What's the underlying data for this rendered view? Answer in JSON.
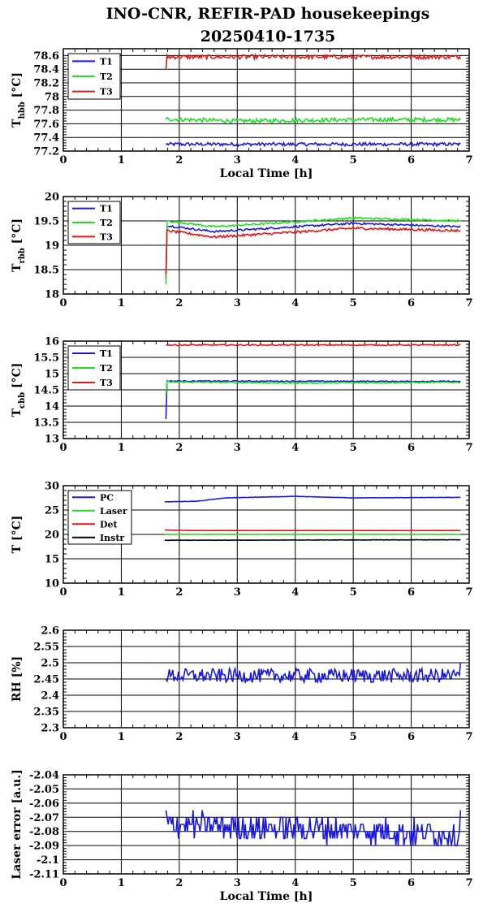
{
  "title_line1": "INO-CNR, REFIR-PAD housekeepings",
  "title_line2": "20250410-1735",
  "xlabel": "Local Time [h]",
  "colors": {
    "blue": "#1a1adc",
    "green": "#22dd22",
    "red": "#dd1a1a",
    "black": "#000000"
  },
  "chart_data": [
    {
      "type": "line",
      "ylabel_main": "T",
      "ylabel_sub": "hbb",
      "ylabel_unit": " [°C]",
      "xlim": [
        0,
        7
      ],
      "ylim": [
        77.2,
        78.7
      ],
      "xticks": [
        0,
        1,
        2,
        3,
        4,
        5,
        6,
        7
      ],
      "yticks": [
        77.2,
        77.4,
        77.6,
        77.8,
        78,
        78.2,
        78.4,
        78.6
      ],
      "ytick_labels": [
        "77.2",
        "77.4",
        "77.6",
        "77.8",
        "78",
        "78.2",
        "78.4",
        "78.6"
      ],
      "grid": true,
      "legend": "top-left",
      "show_xlabel": true,
      "x_start": 1.77,
      "x_end": 6.85,
      "series": [
        {
          "name": "T1",
          "color": "#1a1adc",
          "start": 77.3,
          "mean": 77.3,
          "noise": 0.025,
          "end": 77.3,
          "drift": [
            [
              1.77,
              77.3
            ],
            [
              6.85,
              77.3
            ]
          ]
        },
        {
          "name": "T2",
          "color": "#22dd22",
          "start": 77.66,
          "mean": 77.66,
          "noise": 0.03,
          "end": 77.66,
          "drift": [
            [
              1.77,
              77.67
            ],
            [
              3,
              77.64
            ],
            [
              5,
              77.66
            ],
            [
              6.85,
              77.66
            ]
          ]
        },
        {
          "name": "T3",
          "color": "#dd1a1a",
          "start": 78.4,
          "mean": 78.58,
          "noise": 0.03,
          "end": 78.55,
          "drift": [
            [
              1.8,
              78.58
            ],
            [
              6.85,
              78.58
            ]
          ]
        }
      ]
    },
    {
      "type": "line",
      "ylabel_main": "T",
      "ylabel_sub": "rbb",
      "ylabel_unit": " [°C]",
      "xlim": [
        0,
        7
      ],
      "ylim": [
        18,
        20
      ],
      "xticks": [
        0,
        1,
        2,
        3,
        4,
        5,
        6,
        7
      ],
      "yticks": [
        18,
        18.5,
        19,
        19.5,
        20
      ],
      "ytick_labels": [
        "18",
        "18.5",
        "19",
        "19.5",
        "20"
      ],
      "grid": true,
      "legend": "top-left",
      "show_xlabel": false,
      "x_start": 1.77,
      "x_end": 6.85,
      "series": [
        {
          "name": "T1",
          "color": "#1a1adc",
          "start": 18.3,
          "mean": 19.38,
          "noise": 0.02,
          "end": 19.38,
          "drift": [
            [
              1.8,
              19.4
            ],
            [
              2.6,
              19.28
            ],
            [
              4,
              19.38
            ],
            [
              5,
              19.45
            ],
            [
              6.85,
              19.38
            ]
          ]
        },
        {
          "name": "T2",
          "color": "#22dd22",
          "start": 18.2,
          "mean": 19.5,
          "noise": 0.02,
          "end": 19.5,
          "drift": [
            [
              1.8,
              19.5
            ],
            [
              2.6,
              19.38
            ],
            [
              4,
              19.48
            ],
            [
              5,
              19.56
            ],
            [
              6.85,
              19.5
            ]
          ]
        },
        {
          "name": "T3",
          "color": "#dd1a1a",
          "start": 18.4,
          "mean": 19.28,
          "noise": 0.025,
          "end": 19.3,
          "drift": [
            [
              1.8,
              19.3
            ],
            [
              2.6,
              19.17
            ],
            [
              4,
              19.27
            ],
            [
              5,
              19.35
            ],
            [
              6.85,
              19.3
            ]
          ]
        }
      ]
    },
    {
      "type": "line",
      "ylabel_main": "T",
      "ylabel_sub": "cbb",
      "ylabel_unit": " [°C]",
      "xlim": [
        0,
        7
      ],
      "ylim": [
        13,
        16
      ],
      "xticks": [
        0,
        1,
        2,
        3,
        4,
        5,
        6,
        7
      ],
      "yticks": [
        13,
        13.5,
        14,
        14.5,
        15,
        15.5,
        16
      ],
      "ytick_labels": [
        "13",
        "13.5",
        "14",
        "14.5",
        "15",
        "15.5",
        "16"
      ],
      "grid": true,
      "legend": "top-left",
      "show_xlabel": false,
      "x_start": 1.77,
      "x_end": 6.85,
      "series": [
        {
          "name": "T1",
          "color": "#1a1adc",
          "start": 13.6,
          "mean": 14.76,
          "noise": 0.015,
          "end": 14.76,
          "drift": [
            [
              1.8,
              14.77
            ],
            [
              6.85,
              14.76
            ]
          ]
        },
        {
          "name": "T2",
          "color": "#22dd22",
          "start": 14.3,
          "mean": 14.73,
          "noise": 0.02,
          "end": 14.73,
          "drift": [
            [
              1.8,
              14.74
            ],
            [
              4,
              14.71
            ],
            [
              6.85,
              14.73
            ]
          ]
        },
        {
          "name": "T3",
          "color": "#dd1a1a",
          "start": 15.88,
          "mean": 15.88,
          "noise": 0.02,
          "end": 15.9,
          "drift": [
            [
              1.8,
              15.88
            ],
            [
              6.85,
              15.88
            ]
          ]
        }
      ]
    },
    {
      "type": "line",
      "ylabel_main": "T [°C]",
      "ylabel_sub": "",
      "ylabel_unit": "",
      "xlim": [
        0,
        7
      ],
      "ylim": [
        10,
        30
      ],
      "xticks": [
        0,
        1,
        2,
        3,
        4,
        5,
        6,
        7
      ],
      "yticks": [
        10,
        15,
        20,
        25,
        30
      ],
      "ytick_labels": [
        "10",
        "15",
        "20",
        "25",
        "30"
      ],
      "grid": true,
      "legend": "top-left",
      "show_xlabel": false,
      "x_start": 1.75,
      "x_end": 6.85,
      "series": [
        {
          "name": "PC",
          "color": "#1a1adc",
          "start": 26.7,
          "mean": 27.3,
          "noise": 0.03,
          "end": 27.6,
          "drift": [
            [
              1.75,
              26.7
            ],
            [
              2.3,
              26.8
            ],
            [
              2.8,
              27.5
            ],
            [
              4,
              27.8
            ],
            [
              5,
              27.5
            ],
            [
              6.85,
              27.6
            ]
          ]
        },
        {
          "name": "Laser",
          "color": "#22dd22",
          "start": 20.0,
          "mean": 20.0,
          "noise": 0.03,
          "end": 20.0,
          "drift": [
            [
              1.75,
              20.0
            ],
            [
              6.85,
              20.0
            ]
          ]
        },
        {
          "name": "Det",
          "color": "#dd1a1a",
          "start": 20.9,
          "mean": 20.8,
          "noise": 0.01,
          "end": 20.8,
          "drift": [
            [
              1.75,
              20.9
            ],
            [
              2.2,
              20.8
            ],
            [
              6.85,
              20.8
            ]
          ]
        },
        {
          "name": "Instr",
          "color": "#000000",
          "start": 18.8,
          "mean": 18.9,
          "noise": 0.03,
          "end": 18.9,
          "drift": [
            [
              1.75,
              18.8
            ],
            [
              6.85,
              18.9
            ]
          ]
        }
      ]
    },
    {
      "type": "line",
      "ylabel_main": "RH [%]",
      "ylabel_sub": "",
      "ylabel_unit": "",
      "xlim": [
        0,
        7
      ],
      "ylim": [
        2.3,
        2.6
      ],
      "xticks": [
        0,
        1,
        2,
        3,
        4,
        5,
        6,
        7
      ],
      "yticks": [
        2.3,
        2.35,
        2.4,
        2.45,
        2.5,
        2.55,
        2.6
      ],
      "ytick_labels": [
        "2.3",
        "2.35",
        "2.4",
        "2.45",
        "2.5",
        "2.55",
        "2.6"
      ],
      "grid": true,
      "legend": "none",
      "show_xlabel": false,
      "x_start": 1.77,
      "x_end": 6.85,
      "series": [
        {
          "name": "",
          "color": "#1a1adc",
          "start": 2.45,
          "mean": 2.455,
          "noise": 0.022,
          "end": 2.5,
          "drift": [
            [
              1.77,
              2.46
            ],
            [
              6.85,
              2.46
            ]
          ]
        }
      ]
    },
    {
      "type": "line",
      "ylabel_main": "Laser error [a.u.]",
      "ylabel_sub": "",
      "ylabel_unit": "",
      "xlim": [
        0,
        7
      ],
      "ylim": [
        -2.11,
        -2.04
      ],
      "xticks": [
        0,
        1,
        2,
        3,
        4,
        5,
        6,
        7
      ],
      "yticks": [
        -2.11,
        -2.1,
        -2.09,
        -2.08,
        -2.07,
        -2.06,
        -2.05,
        -2.04
      ],
      "ytick_labels": [
        "-2.11",
        "-2.1",
        "-2.09",
        "-2.08",
        "-2.07",
        "-2.06",
        "-2.05",
        "-2.04"
      ],
      "grid": true,
      "legend": "none",
      "show_xlabel": true,
      "x_start": 1.77,
      "x_end": 6.85,
      "series": [
        {
          "name": "",
          "color": "#1a1adc",
          "start": -2.065,
          "mean": -2.082,
          "noise": 0.009,
          "end": -2.065,
          "quantize": 0.005,
          "drift": [
            [
              1.77,
              -2.075
            ],
            [
              6.85,
              -2.082
            ]
          ]
        }
      ]
    }
  ]
}
